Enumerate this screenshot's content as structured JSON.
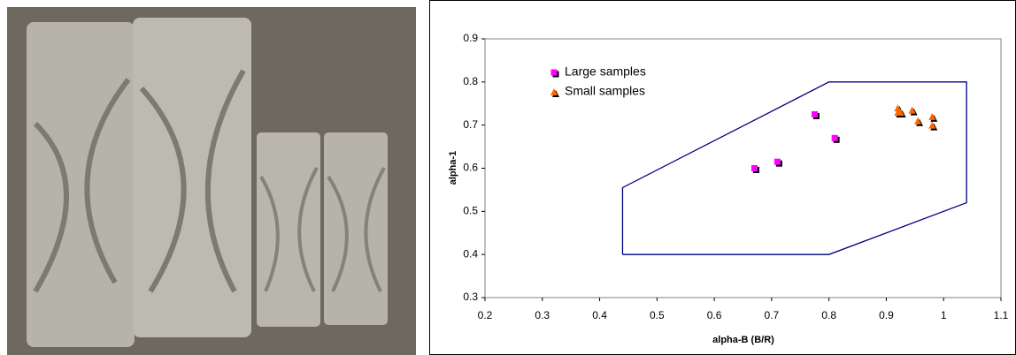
{
  "chart_data": {
    "type": "scatter",
    "x_label": "alpha-B (B/R)",
    "y_label": "alpha-1",
    "xlim": [
      0.2,
      1.1
    ],
    "xticks": [
      0.2,
      0.3,
      0.4,
      0.5,
      0.6,
      0.7,
      0.8,
      0.9,
      1,
      1.1
    ],
    "ylim": [
      0.3,
      0.9
    ],
    "yticks": [
      0.3,
      0.4,
      0.5,
      0.6,
      0.7,
      0.8,
      0.9
    ],
    "legend": "upper-left",
    "series": [
      {
        "name": "Large samples",
        "color": "#ff00ff",
        "marker": "square",
        "x": [
          0.67,
          0.71,
          0.775,
          0.81
        ],
        "y": [
          0.6,
          0.615,
          0.725,
          0.67
        ]
      },
      {
        "name": "Small samples",
        "color": "#ff6600",
        "marker": "triangle",
        "x": [
          0.92,
          0.92,
          0.925,
          0.945,
          0.955,
          0.98,
          0.98
        ],
        "y": [
          0.74,
          0.73,
          0.73,
          0.735,
          0.71,
          0.72,
          0.7
        ]
      }
    ],
    "region": {
      "color": "#000080",
      "x": [
        0.44,
        0.8,
        1.04,
        1.04,
        0.8,
        0.44
      ],
      "y": [
        0.4,
        0.4,
        0.52,
        0.8,
        0.8,
        0.555
      ]
    }
  }
}
